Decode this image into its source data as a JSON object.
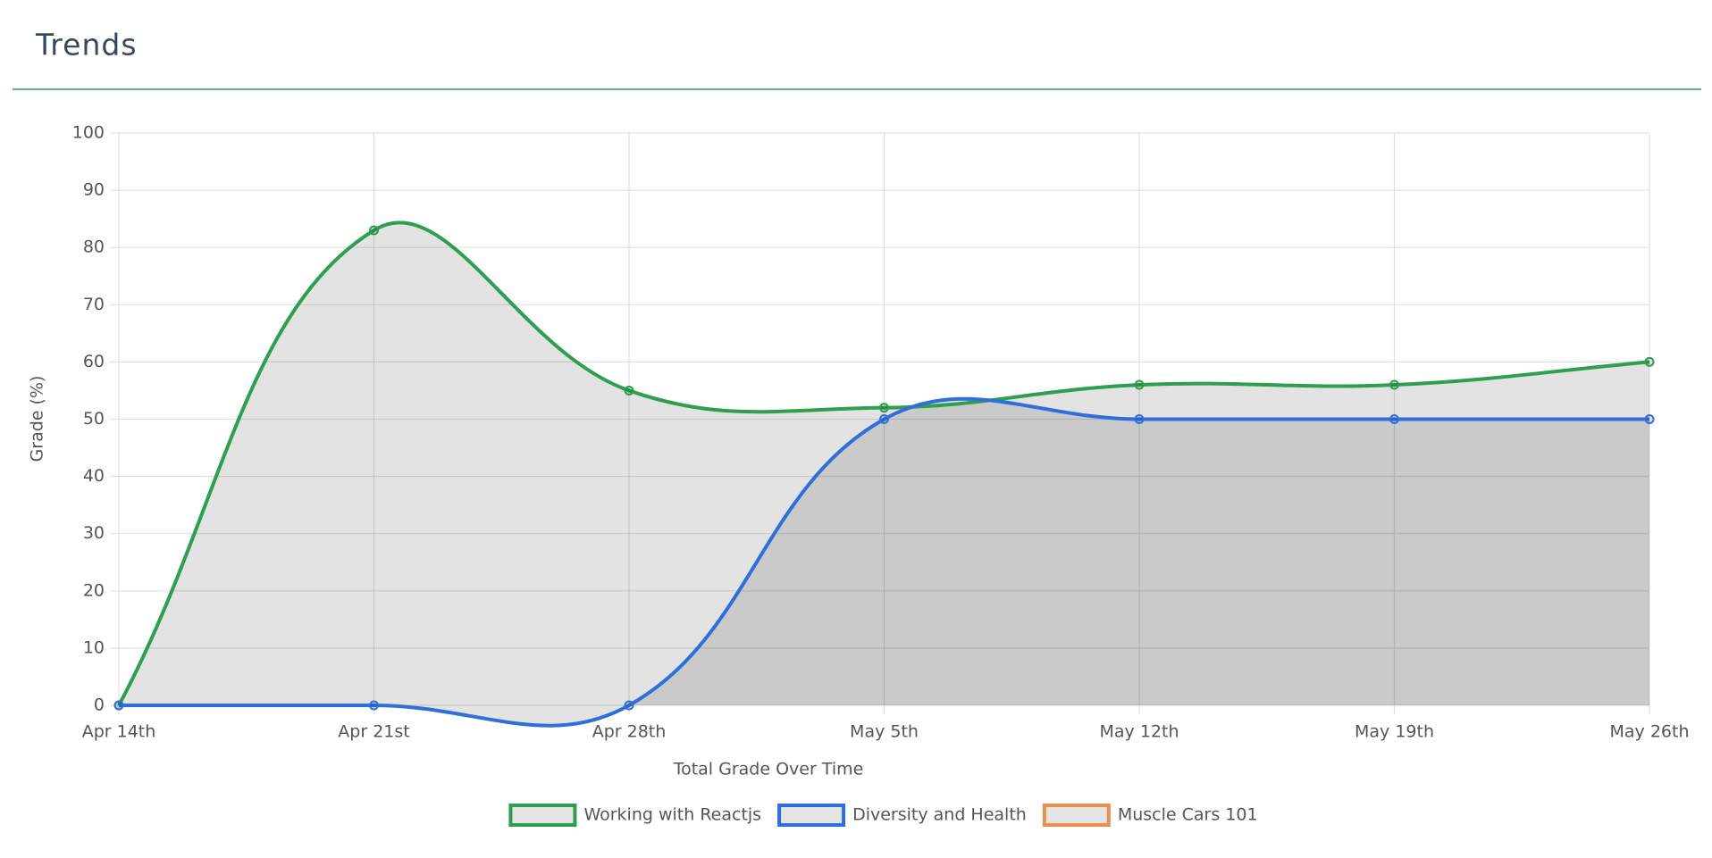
{
  "header": {
    "title": "Trends"
  },
  "chart_data": {
    "type": "line",
    "categories": [
      "Apr 14th",
      "Apr 21st",
      "Apr 28th",
      "May 5th",
      "May 12th",
      "May 19th",
      "May 26th"
    ],
    "series": [
      {
        "name": "Working with Reactjs",
        "color": "#2e9e4f",
        "values": [
          0,
          83,
          55,
          52,
          56,
          56,
          60
        ]
      },
      {
        "name": "Diversity and Health",
        "color": "#2f6fdd",
        "values": [
          0,
          0,
          0,
          50,
          50,
          50,
          50
        ]
      },
      {
        "name": "Muscle Cars 101",
        "color": "#e8904f",
        "values": [
          null,
          null,
          null,
          null,
          null,
          null,
          null
        ]
      }
    ],
    "xlabel": "Total Grade Over Time",
    "ylabel": "Grade (%)",
    "ylim": [
      0,
      100
    ],
    "yticks": [
      0,
      10,
      20,
      30,
      40,
      50,
      60,
      70,
      80,
      90,
      100
    ],
    "grid": true,
    "legend": "bottom"
  }
}
